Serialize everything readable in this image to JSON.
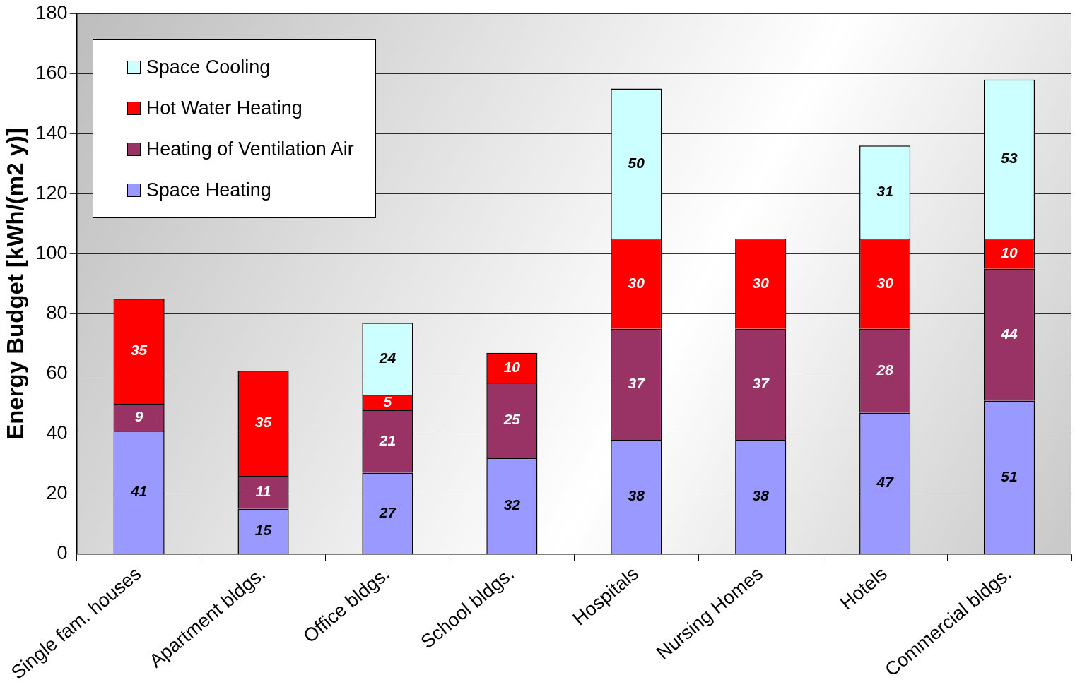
{
  "chart_data": {
    "type": "bar",
    "stacked": true,
    "ylabel": "Energy Budget [kWh/(m2 y)]",
    "categories": [
      "Single fam. houses",
      "Apartment bldgs.",
      "Office bldgs.",
      "School bldgs.",
      "Hospitals",
      "Nursing Homes",
      "Hotels",
      "Commercial bldgs."
    ],
    "series": [
      {
        "name": "Space Heating",
        "color": "#9999ff",
        "values": [
          41,
          15,
          27,
          32,
          38,
          38,
          47,
          51
        ]
      },
      {
        "name": "Heating of Ventilation Air",
        "color": "#993366",
        "values": [
          9,
          11,
          21,
          25,
          37,
          37,
          28,
          44
        ]
      },
      {
        "name": "Hot Water Heating",
        "color": "#ff0000",
        "values": [
          35,
          35,
          5,
          10,
          30,
          30,
          30,
          10
        ]
      },
      {
        "name": "Space Cooling",
        "color": "#ccffff",
        "values": [
          null,
          null,
          24,
          null,
          50,
          null,
          31,
          53
        ]
      }
    ],
    "ylim": [
      0,
      180
    ],
    "yticks": [
      0,
      20,
      40,
      60,
      80,
      100,
      120,
      140,
      160,
      180
    ],
    "grid": "y",
    "legend": "top left",
    "data_labels": true
  }
}
